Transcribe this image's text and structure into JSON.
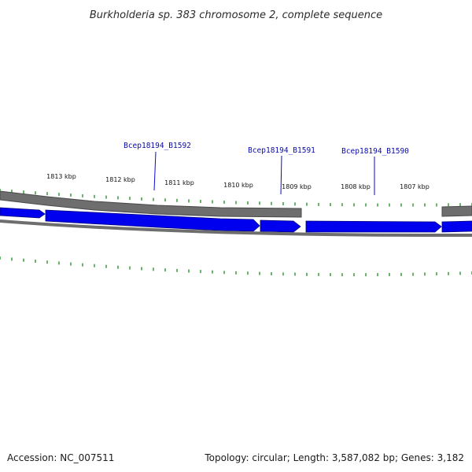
{
  "title": "Burkholderia sp. 383 chromosome 2, complete sequence",
  "footer": {
    "accession": "Accession: NC_007511",
    "summary": "Topology: circular; Length: 3,587,082 bp; Genes: 3,182"
  },
  "colors": {
    "background": "#ffffff",
    "backbone": "#6e6e6e",
    "backbone_edge": "#4a4a4a",
    "gene_fill": "#0000ee",
    "gene_edge": "#00007a",
    "tick": "#1a8a1a",
    "gene_label": "#0a0aa8",
    "label_line": "#0a0ad0"
  },
  "scale": {
    "unit": "kbp",
    "major_ticks": [
      {
        "kbp": 1813,
        "label": "1813 kbp"
      },
      {
        "kbp": 1812,
        "label": "1812 kbp"
      },
      {
        "kbp": 1811,
        "label": "1811 kbp"
      },
      {
        "kbp": 1810,
        "label": "1810 kbp"
      },
      {
        "kbp": 1809,
        "label": "1809 kbp"
      },
      {
        "kbp": 1808,
        "label": "1808 kbp"
      },
      {
        "kbp": 1807,
        "label": "1807 kbp"
      }
    ]
  },
  "genes": [
    {
      "name": "Bcep18194_B1592",
      "labeled": true
    },
    {
      "name": "Bcep18194_B1591",
      "labeled": true
    },
    {
      "name": "Bcep18194_B1590",
      "labeled": true
    }
  ]
}
